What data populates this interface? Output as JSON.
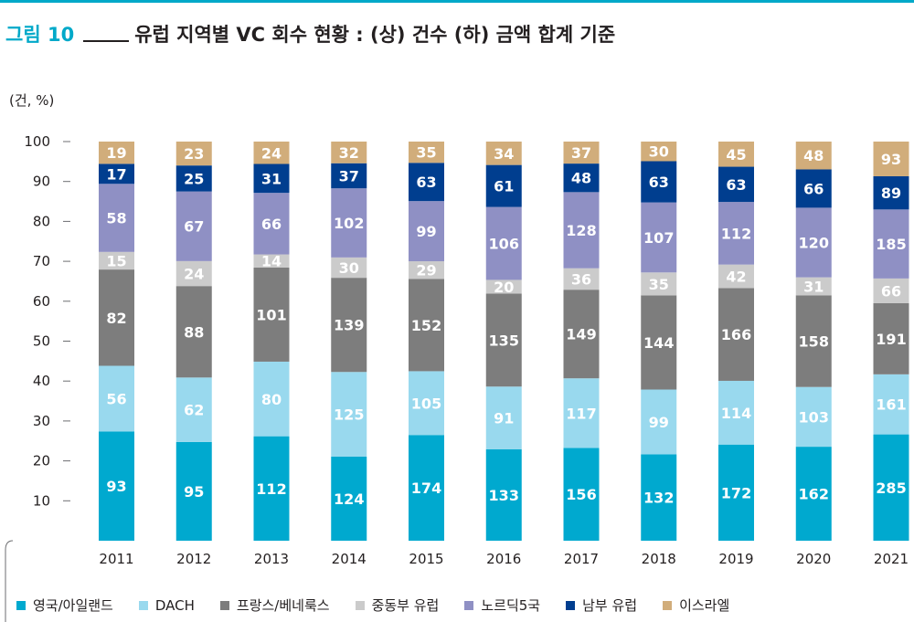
{
  "header": {
    "figure_label": "그림 10",
    "title": "유럽 지역별 VC 회수 현황 : (상) 건수 (하) 금액 합계 기준"
  },
  "chart_data": {
    "type": "bar",
    "stacked": true,
    "normalized": true,
    "unit_label": "(건, %)",
    "ylim": [
      0,
      100
    ],
    "yticks": [
      "10",
      "20",
      "30",
      "40",
      "50",
      "60",
      "70",
      "80",
      "90",
      "100"
    ],
    "categories": [
      "2011",
      "2012",
      "2013",
      "2014",
      "2015",
      "2016",
      "2017",
      "2018",
      "2019",
      "2020",
      "2021"
    ],
    "series": [
      {
        "name": "영국/아일랜드",
        "color": "#00a9cf",
        "label_color": "#ffffff",
        "values": [
          93,
          95,
          112,
          124,
          174,
          133,
          156,
          132,
          172,
          162,
          285
        ]
      },
      {
        "name": "DACH",
        "color": "#99d9ee",
        "label_color": "#ffffff",
        "values": [
          56,
          62,
          80,
          125,
          105,
          91,
          117,
          99,
          114,
          103,
          161
        ]
      },
      {
        "name": "프랑스/베네룩스",
        "color": "#7d7d7d",
        "label_color": "#ffffff",
        "values": [
          82,
          88,
          101,
          139,
          152,
          135,
          149,
          144,
          166,
          158,
          191
        ]
      },
      {
        "name": "중동부 유럽",
        "color": "#cbcbcb",
        "label_color": "#ffffff",
        "values": [
          15,
          24,
          14,
          30,
          29,
          20,
          36,
          35,
          42,
          31,
          66
        ]
      },
      {
        "name": "노르딕5국",
        "color": "#8f90c4",
        "label_color": "#ffffff",
        "values": [
          58,
          67,
          66,
          102,
          99,
          106,
          128,
          107,
          112,
          120,
          185
        ]
      },
      {
        "name": "남부 유럽",
        "color": "#003e8f",
        "label_color": "#ffffff",
        "values": [
          17,
          25,
          31,
          37,
          63,
          61,
          48,
          63,
          63,
          66,
          89
        ]
      },
      {
        "name": "이스라엘",
        "color": "#d1ad7b",
        "label_color": "#ffffff",
        "values": [
          19,
          23,
          24,
          32,
          35,
          34,
          37,
          30,
          45,
          48,
          93
        ]
      }
    ],
    "legend_position": "bottom",
    "grid": false
  }
}
